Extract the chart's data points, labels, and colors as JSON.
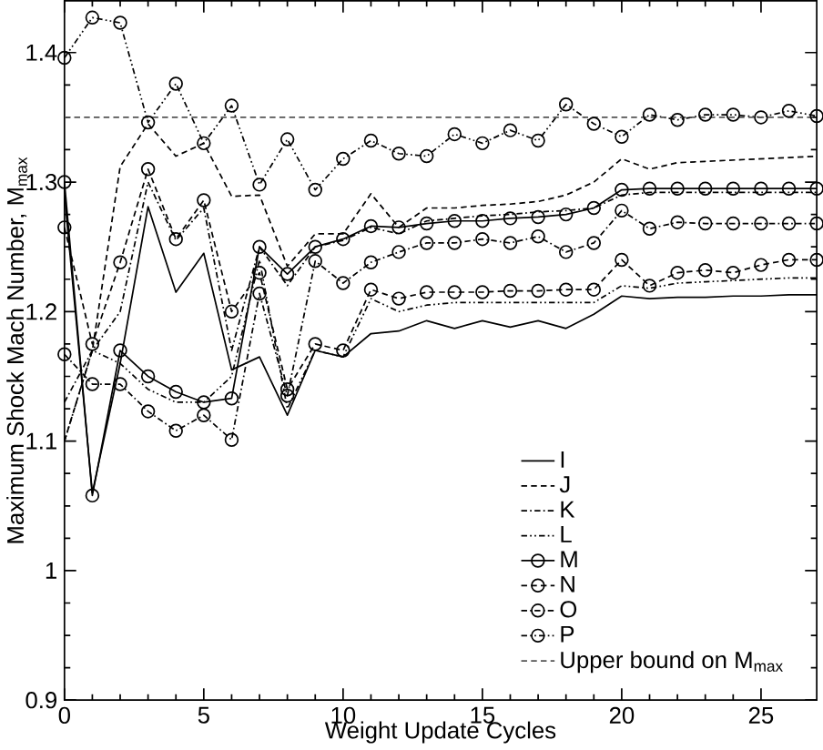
{
  "chart_data": {
    "type": "line",
    "xlabel": "Weight Update Cycles",
    "ylabel": "Maximum Shock Mach Number, M$_{max}$",
    "xlim": [
      0,
      27
    ],
    "ylim": [
      0.9,
      1.44
    ],
    "xticks": [
      0,
      5,
      10,
      15,
      20,
      25
    ],
    "yticks": [
      0.9,
      1,
      1.1,
      1.2,
      1.3,
      1.4
    ],
    "x": [
      0,
      1,
      2,
      3,
      4,
      5,
      6,
      7,
      8,
      9,
      10,
      11,
      12,
      13,
      14,
      15,
      16,
      17,
      18,
      19,
      20,
      21,
      22,
      23,
      24,
      25,
      26,
      27
    ],
    "legend": "bottom right",
    "grid": false,
    "series": [
      {
        "name": "I",
        "color": "#000000",
        "line_style": "solid",
        "marker": "none",
        "values": [
          1.29,
          1.06,
          1.16,
          1.281,
          1.215,
          1.245,
          1.155,
          1.165,
          1.12,
          1.17,
          1.165,
          1.183,
          1.185,
          1.193,
          1.187,
          1.193,
          1.188,
          1.193,
          1.187,
          1.198,
          1.212,
          1.21,
          1.211,
          1.211,
          1.212,
          1.212,
          1.213,
          1.213
        ]
      },
      {
        "name": "J",
        "color": "#000000",
        "line_style": "dashed",
        "marker": "none",
        "values": [
          1.1,
          1.17,
          1.312,
          1.345,
          1.32,
          1.33,
          1.289,
          1.29,
          1.235,
          1.26,
          1.26,
          1.291,
          1.265,
          1.28,
          1.28,
          1.282,
          1.283,
          1.285,
          1.29,
          1.3,
          1.318,
          1.31,
          1.315,
          1.316,
          1.317,
          1.318,
          1.319,
          1.32
        ]
      },
      {
        "name": "K",
        "color": "#000000",
        "line_style": "dashdot",
        "marker": "none",
        "values": [
          1.13,
          1.17,
          1.2,
          1.3,
          1.255,
          1.28,
          1.17,
          1.25,
          1.22,
          1.25,
          1.255,
          1.265,
          1.26,
          1.27,
          1.272,
          1.274,
          1.275,
          1.277,
          1.278,
          1.28,
          1.29,
          1.292,
          1.292,
          1.292,
          1.292,
          1.292,
          1.292,
          1.292
        ]
      },
      {
        "name": "L",
        "color": "#000000",
        "line_style": "dashdotdot",
        "marker": "none",
        "values": [
          1.1,
          1.17,
          1.16,
          1.14,
          1.13,
          1.13,
          1.15,
          1.24,
          1.125,
          1.17,
          1.165,
          1.21,
          1.2,
          1.205,
          1.207,
          1.207,
          1.207,
          1.207,
          1.207,
          1.207,
          1.22,
          1.218,
          1.222,
          1.223,
          1.224,
          1.225,
          1.226,
          1.226
        ]
      },
      {
        "name": "M",
        "color": "#000000",
        "line_style": "solid",
        "marker": "circle",
        "values": [
          1.3,
          1.058,
          1.17,
          1.15,
          1.138,
          1.13,
          1.133,
          1.25,
          1.229,
          1.25,
          1.256,
          1.266,
          1.265,
          1.268,
          1.27,
          1.27,
          1.272,
          1.273,
          1.275,
          1.28,
          1.294,
          1.295,
          1.295,
          1.295,
          1.295,
          1.295,
          1.295,
          1.295
        ]
      },
      {
        "name": "N",
        "color": "#000000",
        "line_style": "dashed",
        "marker": "circle",
        "values": [
          1.265,
          1.175,
          1.238,
          1.31,
          1.256,
          1.286,
          1.2,
          1.23,
          1.14,
          1.175,
          1.17,
          1.217,
          1.21,
          1.215,
          1.215,
          1.215,
          1.216,
          1.216,
          1.217,
          1.217,
          1.24,
          1.22,
          1.23,
          1.232,
          1.23,
          1.236,
          1.24,
          1.24
        ]
      },
      {
        "name": "O",
        "color": "#000000",
        "line_style": "dashdot",
        "marker": "circle",
        "values": [
          1.167,
          1.144,
          1.144,
          1.123,
          1.108,
          1.12,
          1.101,
          1.214,
          1.135,
          1.239,
          1.222,
          1.238,
          1.246,
          1.253,
          1.253,
          1.256,
          1.253,
          1.258,
          1.246,
          1.253,
          1.278,
          1.264,
          1.269,
          1.268,
          1.268,
          1.268,
          1.268,
          1.268
        ]
      },
      {
        "name": "P",
        "color": "#000000",
        "line_style": "dashdotdot",
        "marker": "circle",
        "values": [
          1.396,
          1.427,
          1.423,
          1.346,
          1.376,
          1.33,
          1.359,
          1.298,
          1.333,
          1.294,
          1.318,
          1.332,
          1.322,
          1.32,
          1.337,
          1.33,
          1.34,
          1.332,
          1.36,
          1.345,
          1.335,
          1.352,
          1.348,
          1.352,
          1.352,
          1.35,
          1.355,
          1.351
        ]
      }
    ],
    "ref_lines": [
      {
        "axis": "y",
        "value": 1.35,
        "label": "Upper bound on M$_{max}$",
        "color": "#555555",
        "line_style": "dashed"
      }
    ]
  }
}
